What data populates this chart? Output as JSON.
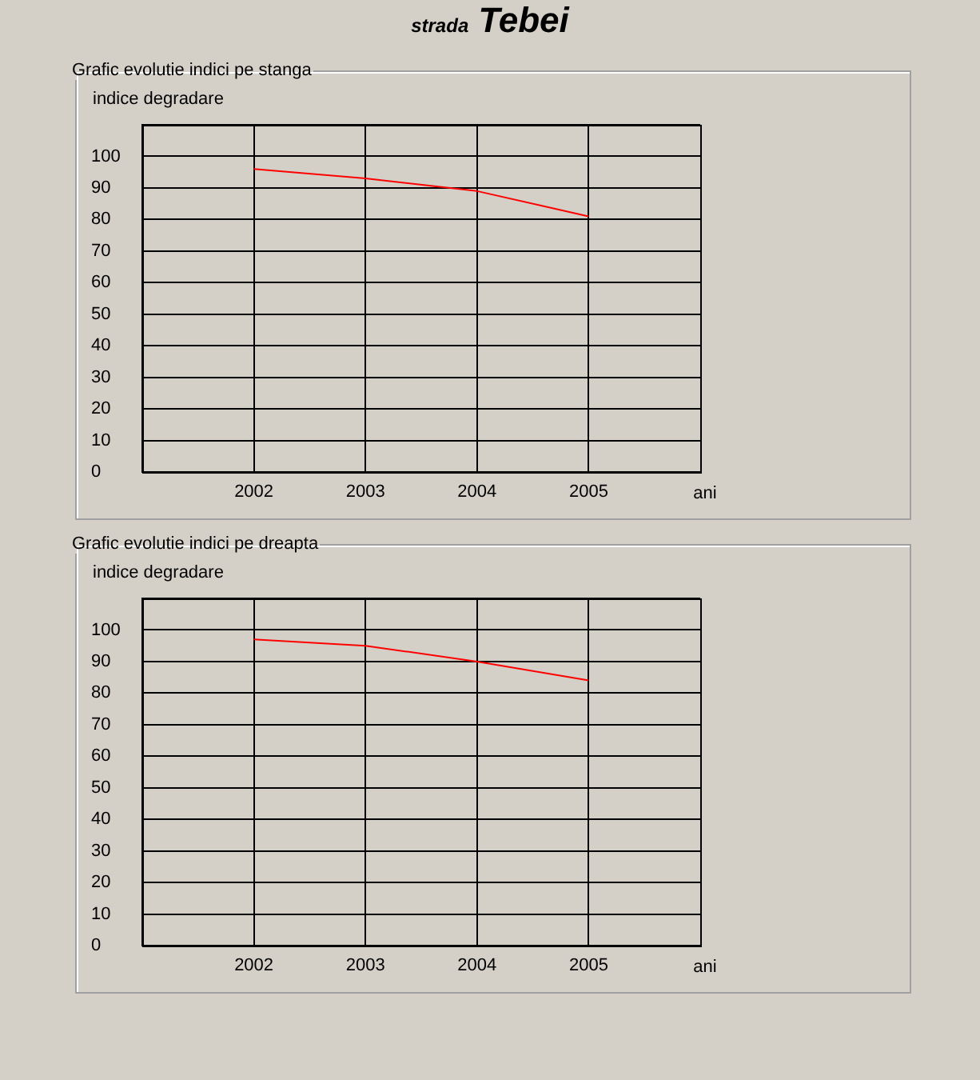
{
  "chart_data": [
    {
      "type": "line",
      "title": "strada Tebei",
      "subtitle": "Grafic evolutie indici pe stanga",
      "xlabel": "ani",
      "ylabel": "indice degradare",
      "x": [
        2002,
        2003,
        2004,
        2005
      ],
      "series": [
        {
          "color": "#ff0000",
          "values": [
            96,
            93,
            89,
            81
          ]
        }
      ],
      "xlim": [
        2001,
        2006
      ],
      "xticks": [
        2002,
        2003,
        2004,
        2005
      ],
      "ylim": [
        0,
        110
      ],
      "yticks": [
        0,
        10,
        20,
        30,
        40,
        50,
        60,
        70,
        80,
        90,
        100,
        {
          "value": 110,
          "label": null
        }
      ],
      "grid": true,
      "legend": false,
      "marker": "none",
      "line_style": "solid"
    },
    {
      "type": "line",
      "subtitle": "Grafic evolutie indici pe dreapta",
      "xlabel": "ani",
      "ylabel": "indice degradare",
      "x": [
        2002,
        2003,
        2004,
        2005
      ],
      "series": [
        {
          "color": "#ff0000",
          "values": [
            97,
            95,
            90,
            84
          ]
        }
      ],
      "xlim": [
        2001,
        2006
      ],
      "xticks": [
        2002,
        2003,
        2004,
        2005
      ],
      "ylim": [
        0,
        110
      ],
      "yticks": [
        0,
        10,
        20,
        30,
        40,
        50,
        60,
        70,
        80,
        90,
        100,
        {
          "value": 110,
          "label": null
        }
      ],
      "grid": true,
      "legend": false,
      "marker": "none",
      "line_style": "solid"
    }
  ]
}
